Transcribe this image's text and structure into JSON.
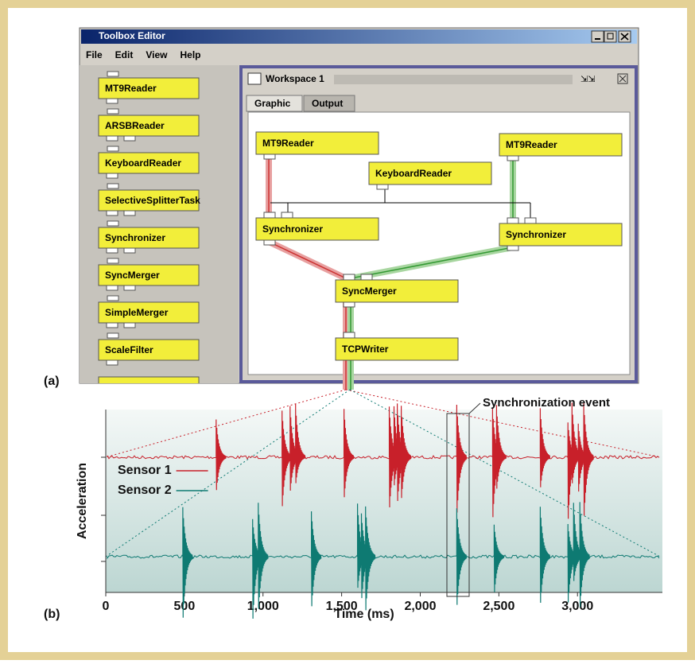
{
  "window": {
    "title": "Toolbox Editor",
    "menu": [
      "File",
      "Edit",
      "View",
      "Help"
    ]
  },
  "palette": [
    "MT9Reader",
    "ARSBReader",
    "KeyboardReader",
    "SelectiveSplitterTask",
    "Synchronizer",
    "SyncMerger",
    "SimpleMerger",
    "ScaleFilter"
  ],
  "workspace": {
    "title": "Workspace 1",
    "tabs": [
      "Graphic",
      "Output"
    ],
    "nodes": [
      "MT9Reader",
      "MT9Reader",
      "KeyboardReader",
      "Synchronizer",
      "Synchronizer",
      "SyncMerger",
      "TCPWriter"
    ]
  },
  "panel_labels": [
    "(a)",
    "(b)"
  ],
  "chart_data": {
    "type": "event_trace",
    "x_label": "Time (ms)",
    "y_label": "Acceleration",
    "annotation": "Synchronization event",
    "xlim": [
      0,
      3540
    ],
    "xticks": [
      0,
      500,
      {
        "value": 1000,
        "label": "1,000"
      },
      {
        "value": 1500,
        "label": "1,500"
      },
      {
        "value": 2000,
        "label": "2,000"
      },
      {
        "value": 2500,
        "label": "2,500"
      },
      {
        "value": 3000,
        "label": "3,000"
      }
    ],
    "series": [
      {
        "name": "Sensor 1",
        "color": "#c8202a",
        "x": [
          702,
          1121,
          1172,
          1207,
          1515,
          1803,
          1833,
          1854,
          1879,
          2232,
          2460,
          2485,
          2763,
          2939,
          2965,
          3005,
          3040
        ]
      },
      {
        "name": "Sensor 2",
        "color": "#0e7a72",
        "x": [
          490,
          934,
          970,
          1308,
          1601,
          1626,
          1652,
          2232,
          2470,
          2763,
          2939,
          2975,
          3015
        ]
      }
    ]
  }
}
